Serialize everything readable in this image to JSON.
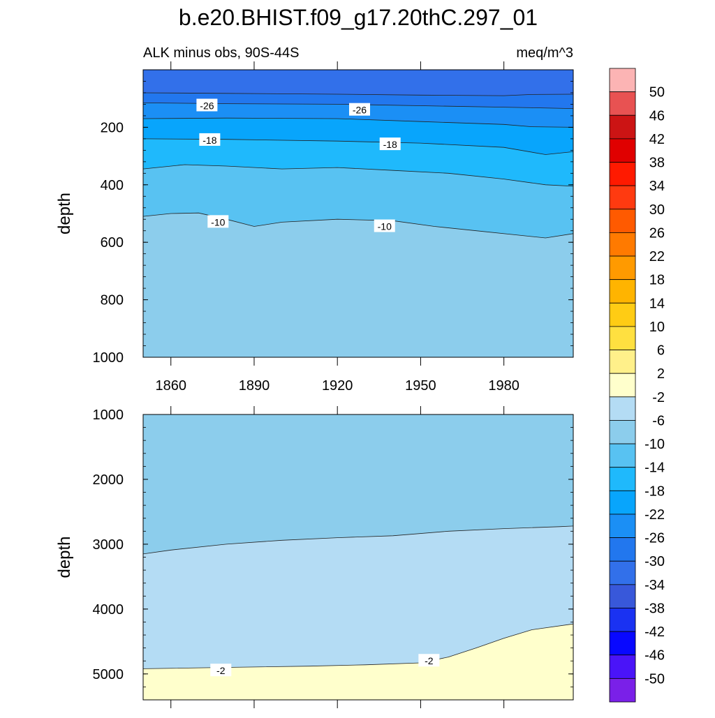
{
  "chart_data": {
    "type": "filled-contour",
    "title": "b.e20.BHIST.f09_g17.20thC.297_01",
    "subtitle_left": "ALK minus obs, 90S-44S",
    "units": "meq/m^3",
    "xlabel": "",
    "x_ticks": [
      "1860",
      "1890",
      "1920",
      "1950",
      "1980"
    ],
    "xlim": [
      1850,
      2005
    ],
    "colorbar": {
      "labels": [
        "50",
        "46",
        "42",
        "38",
        "34",
        "30",
        "26",
        "22",
        "18",
        "14",
        "10",
        "6",
        "2",
        "-2",
        "-6",
        "-10",
        "-14",
        "-18",
        "-22",
        "-26",
        "-30",
        "-34",
        "-38",
        "-42",
        "-46",
        "-50"
      ],
      "colors": [
        "#fcb4b4",
        "#e85252",
        "#cc1414",
        "#e00000",
        "#ff1a00",
        "#ff3a10",
        "#ff5a00",
        "#ff7a00",
        "#ff9a00",
        "#ffb400",
        "#ffcc14",
        "#ffe040",
        "#fff08a",
        "#ffffcc",
        "#b4dcf4",
        "#8ccdec",
        "#58c2f2",
        "#1fb9fc",
        "#08a5fc",
        "#1b8ff5",
        "#2277ee",
        "#3270ea",
        "#3858da",
        "#1a32f2",
        "#0808ff",
        "#4a14f8",
        "#7a20e8"
      ]
    },
    "panels": [
      {
        "name": "upper",
        "ylabel": "depth",
        "ylim": [
          1000,
          0
        ],
        "y_ticks": [
          "200",
          "400",
          "600",
          "800",
          "1000"
        ],
        "contour_labels": [
          {
            "text": "-26",
            "year": 1873,
            "depth": 125
          },
          {
            "text": "-26",
            "year": 1928,
            "depth": 140
          },
          {
            "text": "-18",
            "year": 1874,
            "depth": 245
          },
          {
            "text": "-18",
            "year": 1939,
            "depth": 260
          },
          {
            "text": "-10",
            "year": 1877,
            "depth": 530
          },
          {
            "text": "-10",
            "year": 1937,
            "depth": 545
          }
        ],
        "bands": [
          {
            "color": "#3270ea",
            "boundary": [
              [
                1850,
                80
              ],
              [
                1880,
                82
              ],
              [
                1920,
                85
              ],
              [
                1950,
                88
              ],
              [
                1980,
                90
              ],
              [
                1990,
                86
              ],
              [
                2005,
                85
              ]
            ]
          },
          {
            "color": "#2277ee",
            "boundary": [
              [
                1850,
                115
              ],
              [
                1880,
                118
              ],
              [
                1920,
                120
              ],
              [
                1950,
                125
              ],
              [
                1980,
                130
              ],
              [
                1990,
                132
              ],
              [
                2005,
                135
              ]
            ]
          },
          {
            "color": "#1b8ff5",
            "boundary": [
              [
                1850,
                170
              ],
              [
                1880,
                168
              ],
              [
                1920,
                170
              ],
              [
                1950,
                180
              ],
              [
                1980,
                190
              ],
              [
                1990,
                198
              ],
              [
                2005,
                200
              ]
            ]
          },
          {
            "color": "#08a5fc",
            "boundary": [
              [
                1850,
                240
              ],
              [
                1880,
                242
              ],
              [
                1920,
                248
              ],
              [
                1950,
                255
              ],
              [
                1980,
                270
              ],
              [
                1995,
                295
              ],
              [
                2005,
                285
              ]
            ]
          },
          {
            "color": "#1fb9fc",
            "boundary": [
              [
                1850,
                345
              ],
              [
                1865,
                330
              ],
              [
                1880,
                335
              ],
              [
                1900,
                345
              ],
              [
                1920,
                340
              ],
              [
                1940,
                350
              ],
              [
                1960,
                360
              ],
              [
                1980,
                380
              ],
              [
                1995,
                400
              ],
              [
                2005,
                405
              ]
            ]
          },
          {
            "color": "#58c2f2",
            "boundary": [
              [
                1850,
                510
              ],
              [
                1860,
                500
              ],
              [
                1870,
                498
              ],
              [
                1880,
                520
              ],
              [
                1890,
                545
              ],
              [
                1900,
                530
              ],
              [
                1920,
                520
              ],
              [
                1940,
                525
              ],
              [
                1955,
                545
              ],
              [
                1970,
                560
              ],
              [
                1985,
                575
              ],
              [
                1995,
                585
              ],
              [
                2005,
                570
              ]
            ]
          },
          {
            "color": "#8ccdec",
            "boundary": [
              [
                1850,
                1000
              ],
              [
                2005,
                1000
              ]
            ]
          }
        ]
      },
      {
        "name": "lower",
        "ylabel": "depth",
        "ylim": [
          5400,
          1000
        ],
        "y_ticks": [
          "1000",
          "2000",
          "3000",
          "4000",
          "5000"
        ],
        "contour_labels": [
          {
            "text": "-2",
            "year": 1878,
            "depth": 4950
          },
          {
            "text": "-2",
            "year": 1953,
            "depth": 4800
          }
        ],
        "bands": [
          {
            "color": "#8ccdec",
            "boundary": [
              [
                1850,
                3150
              ],
              [
                1860,
                3090
              ],
              [
                1880,
                3000
              ],
              [
                1900,
                2940
              ],
              [
                1920,
                2900
              ],
              [
                1940,
                2870
              ],
              [
                1960,
                2800
              ],
              [
                1980,
                2760
              ],
              [
                2000,
                2730
              ],
              [
                2005,
                2720
              ]
            ]
          },
          {
            "color": "#b4dcf4",
            "boundary": [
              [
                1850,
                4920
              ],
              [
                1880,
                4900
              ],
              [
                1910,
                4880
              ],
              [
                1930,
                4860
              ],
              [
                1950,
                4830
              ],
              [
                1960,
                4740
              ],
              [
                1970,
                4600
              ],
              [
                1980,
                4450
              ],
              [
                1990,
                4320
              ],
              [
                2005,
                4230
              ]
            ]
          },
          {
            "color": "#ffffcc",
            "boundary": [
              [
                1850,
                5400
              ],
              [
                2005,
                5400
              ]
            ]
          }
        ]
      }
    ]
  }
}
